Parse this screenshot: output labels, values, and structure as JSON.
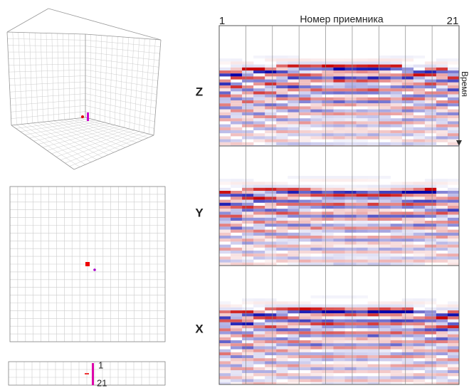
{
  "figure": {
    "header": "Номер приемника",
    "first_receiver": "1",
    "last_receiver": "21",
    "time_label": "Время",
    "components": [
      "Z",
      "Y",
      "X"
    ]
  }
}
